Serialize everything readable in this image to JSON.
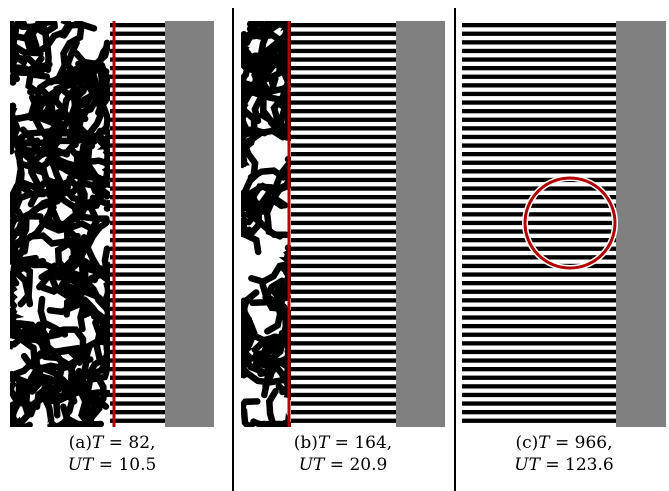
{
  "panels": [
    {
      "id": "a",
      "label": "(a)",
      "var": "T",
      "t_value": "82",
      "ut_var": "UT",
      "ut_value": "10.5"
    },
    {
      "id": "b",
      "label": "(b)",
      "var": "T",
      "t_value": "164",
      "ut_var": "UT",
      "ut_value": "20.9"
    },
    {
      "id": "c",
      "label": "(c)",
      "var": "T",
      "t_value": "966",
      "ut_var": "UT",
      "ut_value": "123.6"
    }
  ],
  "colors": {
    "stripe_dark": "#000000",
    "stripe_light": "#ffffff",
    "background_region": "#808080",
    "front_line": "#b00000",
    "circle": "#b00000"
  }
}
